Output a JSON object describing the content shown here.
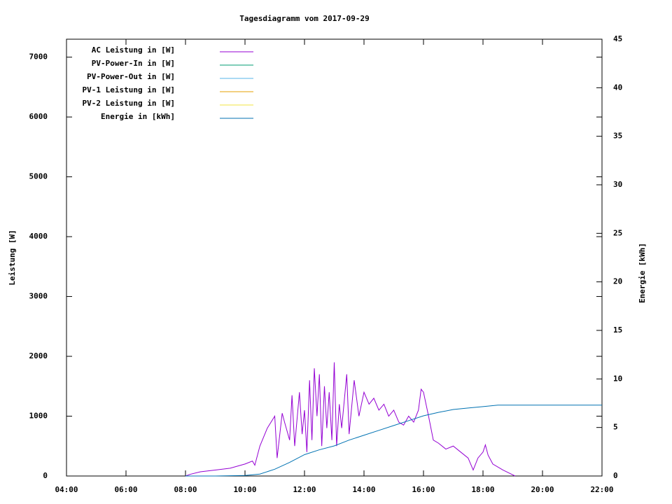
{
  "chart_data": {
    "type": "line",
    "title": "Tagesdiagramm vom 2017-09-29",
    "ylabel": "Leistung [W]",
    "y2label": "Energie [kWh]",
    "xlim": [
      4,
      22
    ],
    "xticks": [
      {
        "value": 4,
        "label": "04:00"
      },
      {
        "value": 6,
        "label": "06:00"
      },
      {
        "value": 8,
        "label": "08:00"
      },
      {
        "value": 10,
        "label": "10:00"
      },
      {
        "value": 12,
        "label": "12:00"
      },
      {
        "value": 14,
        "label": "14:00"
      },
      {
        "value": 16,
        "label": "16:00"
      },
      {
        "value": 18,
        "label": "18:00"
      },
      {
        "value": 20,
        "label": "20:00"
      },
      {
        "value": 22,
        "label": "22:00"
      }
    ],
    "ylim": [
      0,
      7300
    ],
    "yticks": [
      0,
      1000,
      2000,
      3000,
      4000,
      5000,
      6000,
      7000
    ],
    "y2lim": [
      0,
      45
    ],
    "y2ticks": [
      0,
      5,
      10,
      15,
      20,
      25,
      30,
      35,
      40,
      45
    ],
    "legend": "upper left",
    "series": [
      {
        "name": "AC Leistung in [W]",
        "color": "#9400d3",
        "x": [
          8,
          8.17,
          8.5,
          9,
          9.5,
          10,
          10.25,
          10.33,
          10.5,
          10.75,
          11,
          11.08,
          11.25,
          11.33,
          11.5,
          11.58,
          11.67,
          11.83,
          11.92,
          12,
          12.08,
          12.17,
          12.25,
          12.33,
          12.42,
          12.5,
          12.58,
          12.67,
          12.75,
          12.83,
          12.92,
          13,
          13.08,
          13.17,
          13.25,
          13.42,
          13.5,
          13.67,
          13.83,
          14,
          14.17,
          14.33,
          14.5,
          14.67,
          14.83,
          15,
          15.17,
          15.33,
          15.5,
          15.67,
          15.83,
          15.92,
          16,
          16.17,
          16.33,
          16.5,
          16.75,
          17,
          17.25,
          17.5,
          17.67,
          17.83,
          18,
          18.08,
          18.17,
          18.33,
          18.67,
          19,
          19.08
        ],
        "values": [
          0,
          30,
          70,
          100,
          130,
          200,
          250,
          180,
          500,
          800,
          1000,
          300,
          1050,
          900,
          600,
          1350,
          500,
          1400,
          700,
          1100,
          400,
          1600,
          600,
          1800,
          1000,
          1700,
          500,
          1500,
          800,
          1400,
          600,
          1900,
          500,
          1200,
          800,
          1700,
          700,
          1600,
          1000,
          1400,
          1200,
          1300,
          1100,
          1200,
          1000,
          1100,
          900,
          850,
          1000,
          900,
          1100,
          1450,
          1400,
          1000,
          600,
          550,
          450,
          500,
          400,
          300,
          100,
          300,
          400,
          520,
          350,
          200,
          100,
          20,
          0
        ]
      },
      {
        "name": "PV-Power-In in [W]",
        "color": "#009e73",
        "x": [],
        "values": []
      },
      {
        "name": "PV-Power-Out in [W]",
        "color": "#56b4e9",
        "x": [],
        "values": []
      },
      {
        "name": "PV-1 Leistung in [W]",
        "color": "#e69f00",
        "x": [],
        "values": []
      },
      {
        "name": "PV-2 Leistung in [W]",
        "color": "#f0e442",
        "x": [],
        "values": []
      },
      {
        "name": "Energie in [kWh]",
        "color": "#0072b2",
        "axis": "y2",
        "x": [
          8,
          9,
          10,
          10.5,
          11,
          11.5,
          12,
          12.5,
          13,
          13.5,
          14,
          14.5,
          15,
          15.5,
          16,
          16.5,
          17,
          17.5,
          18,
          18.5,
          19,
          20,
          21,
          22
        ],
        "values": [
          0,
          0,
          0.05,
          0.2,
          0.7,
          1.4,
          2.2,
          2.7,
          3.1,
          3.7,
          4.2,
          4.7,
          5.2,
          5.7,
          6.2,
          6.55,
          6.85,
          7.0,
          7.15,
          7.3,
          7.3,
          7.3,
          7.3,
          7.3
        ]
      }
    ]
  }
}
